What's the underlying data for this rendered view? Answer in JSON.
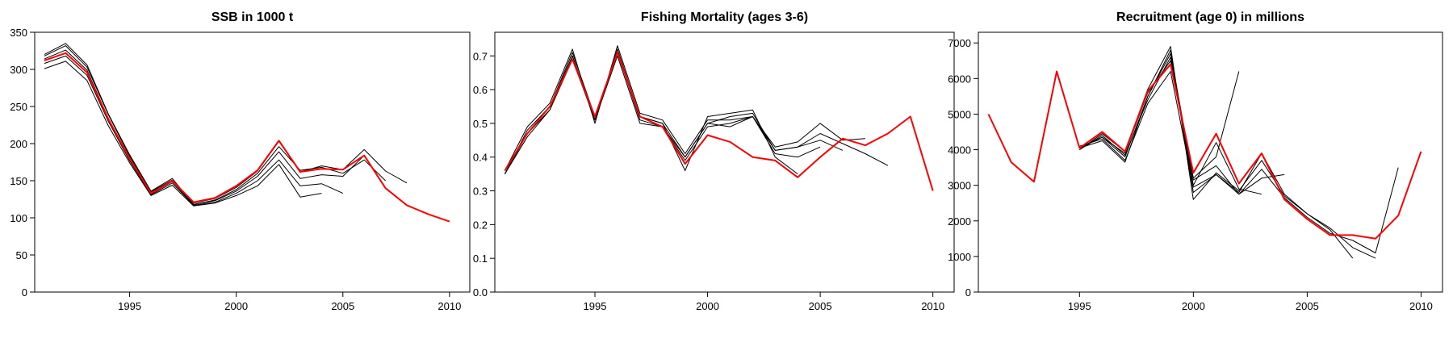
{
  "chart_data": [
    {
      "type": "line",
      "title": "SSB in 1000 t",
      "xlabel": "",
      "ylabel": "",
      "xlim": [
        1990.7,
        2010.8
      ],
      "ylim": [
        0,
        350
      ],
      "xticks": [
        1995,
        2000,
        2005,
        2010
      ],
      "yticks": [
        0,
        50,
        100,
        150,
        200,
        250,
        300,
        350
      ],
      "series": [
        {
          "color": "#ff0000",
          "x": [
            1991,
            1992,
            1993,
            1994,
            1995,
            1996,
            1997,
            1998,
            1999,
            2000,
            2001,
            2002,
            2003,
            2004,
            2005,
            2006,
            2007,
            2008,
            2009,
            2010
          ],
          "y": [
            312,
            322,
            296,
            233,
            180,
            133,
            150,
            121,
            127,
            143,
            164,
            204,
            162,
            166,
            165,
            184,
            140,
            117,
            105,
            95
          ]
        },
        {
          "color": "#000000",
          "x": [
            1991,
            1992,
            1993,
            1994,
            1995,
            1996,
            1997,
            1998,
            1999,
            2000,
            2001,
            2002,
            2003,
            2004,
            2005,
            2006,
            2007,
            2008
          ],
          "y": [
            318,
            332,
            303,
            239,
            183,
            135,
            151,
            120,
            126,
            141,
            163,
            203,
            162,
            170,
            165,
            192,
            163,
            147
          ]
        },
        {
          "color": "#000000",
          "x": [
            1991,
            1992,
            1993,
            1994,
            1995,
            1996,
            1997,
            1998,
            1999,
            2000,
            2001,
            2002,
            2003,
            2004,
            2005,
            2006,
            2007
          ],
          "y": [
            320,
            335,
            306,
            240,
            185,
            136,
            153,
            118,
            124,
            138,
            160,
            196,
            164,
            168,
            160,
            178,
            150
          ]
        },
        {
          "color": "#000000",
          "x": [
            1991,
            1992,
            1993,
            1994,
            1995,
            1996,
            1997,
            1998,
            1999,
            2000,
            2001,
            2002,
            2003,
            2004,
            2005,
            2006
          ],
          "y": [
            314,
            326,
            299,
            234,
            180,
            132,
            149,
            118,
            123,
            136,
            156,
            189,
            153,
            158,
            156,
            184
          ]
        },
        {
          "color": "#000000",
          "x": [
            1991,
            1992,
            1993,
            1994,
            1995,
            1996,
            1997,
            1998,
            1999,
            2000,
            2001,
            2002,
            2003,
            2004,
            2005
          ],
          "y": [
            308,
            318,
            292,
            230,
            177,
            131,
            147,
            117,
            121,
            133,
            150,
            178,
            143,
            146,
            133
          ]
        },
        {
          "color": "#000000",
          "x": [
            1991,
            1992,
            1993,
            1994,
            1995,
            1996,
            1997,
            1998,
            1999,
            2000,
            2001,
            2002,
            2003,
            2004
          ],
          "y": [
            301,
            311,
            285,
            224,
            174,
            130,
            144,
            116,
            120,
            130,
            143,
            172,
            128,
            133
          ]
        }
      ]
    },
    {
      "type": "line",
      "title": "Fishing Mortality (ages 3-6)",
      "xlabel": "",
      "ylabel": "",
      "xlim": [
        1990.7,
        2010.8
      ],
      "ylim": [
        0,
        0.77
      ],
      "xticks": [
        1995,
        2000,
        2005,
        2010
      ],
      "yticks": [
        0.0,
        0.1,
        0.2,
        0.3,
        0.4,
        0.5,
        0.6,
        0.7
      ],
      "ytick_labels": [
        "0.0",
        "0.1",
        "0.2",
        "0.3",
        "0.4",
        "0.5",
        "0.6",
        "0.7"
      ],
      "series": [
        {
          "color": "#ff0000",
          "x": [
            1991,
            1992,
            1993,
            1994,
            1995,
            1996,
            1997,
            1998,
            1999,
            2000,
            2001,
            2002,
            2003,
            2004,
            2005,
            2006,
            2007,
            2008,
            2009,
            2010
          ],
          "y": [
            0.36,
            0.47,
            0.55,
            0.69,
            0.52,
            0.71,
            0.52,
            0.49,
            0.38,
            0.465,
            0.445,
            0.4,
            0.39,
            0.34,
            0.4,
            0.455,
            0.435,
            0.47,
            0.52,
            0.3
          ]
        },
        {
          "color": "#000000",
          "x": [
            1991,
            1992,
            1993,
            1994,
            1995,
            1996,
            1997,
            1998,
            1999,
            2000,
            2001,
            2002,
            2003,
            2004,
            2005,
            2006,
            2007,
            2008
          ],
          "y": [
            0.35,
            0.48,
            0.55,
            0.7,
            0.51,
            0.72,
            0.52,
            0.5,
            0.4,
            0.5,
            0.52,
            0.53,
            0.42,
            0.43,
            0.47,
            0.44,
            0.41,
            0.375
          ]
        },
        {
          "color": "#000000",
          "x": [
            1991,
            1992,
            1993,
            1994,
            1995,
            1996,
            1997,
            1998,
            1999,
            2000,
            2001,
            2002,
            2003,
            2004,
            2005,
            2006,
            2007
          ],
          "y": [
            0.36,
            0.49,
            0.56,
            0.72,
            0.5,
            0.73,
            0.53,
            0.51,
            0.41,
            0.51,
            0.51,
            0.52,
            0.43,
            0.445,
            0.5,
            0.45,
            0.455
          ]
        },
        {
          "color": "#000000",
          "x": [
            1991,
            1992,
            1993,
            1994,
            1995,
            1996,
            1997,
            1998,
            1999,
            2000,
            2001,
            2002,
            2003,
            2004,
            2005,
            2006
          ],
          "y": [
            0.35,
            0.46,
            0.54,
            0.69,
            0.51,
            0.7,
            0.5,
            0.49,
            0.39,
            0.49,
            0.5,
            0.52,
            0.42,
            0.43,
            0.45,
            0.42
          ]
        },
        {
          "color": "#000000",
          "x": [
            1991,
            1992,
            1993,
            1994,
            1995,
            1996,
            1997,
            1998,
            1999,
            2000,
            2001,
            2002,
            2003,
            2004,
            2005
          ],
          "y": [
            0.35,
            0.47,
            0.55,
            0.71,
            0.52,
            0.71,
            0.51,
            0.49,
            0.4,
            0.5,
            0.49,
            0.52,
            0.41,
            0.4,
            0.43
          ]
        },
        {
          "color": "#000000",
          "x": [
            1991,
            1992,
            1993,
            1994,
            1995,
            1996,
            1997,
            1998,
            1999,
            2000,
            2001,
            2002,
            2003,
            2004
          ],
          "y": [
            0.35,
            0.47,
            0.54,
            0.7,
            0.51,
            0.71,
            0.52,
            0.5,
            0.36,
            0.52,
            0.53,
            0.54,
            0.4,
            0.35
          ]
        }
      ]
    },
    {
      "type": "line",
      "title": "Recruitment (age 0) in millions",
      "xlabel": "",
      "ylabel": "",
      "xlim": [
        1990.7,
        2010.8
      ],
      "ylim": [
        0,
        7300
      ],
      "xticks": [
        1995,
        2000,
        2005,
        2010
      ],
      "yticks": [
        0,
        1000,
        2000,
        3000,
        4000,
        5000,
        6000,
        7000
      ],
      "series": [
        {
          "color": "#ff0000",
          "x": [
            1991,
            1992,
            1993,
            1994,
            1995,
            1996,
            1997,
            1998,
            1999,
            2000,
            2001,
            2002,
            2003,
            2004,
            2005,
            2006,
            2007,
            2008,
            2009,
            2010
          ],
          "y": [
            5000,
            3650,
            3100,
            6200,
            4050,
            4500,
            3950,
            5650,
            6400,
            3350,
            4450,
            3050,
            3900,
            2600,
            2050,
            1600,
            1600,
            1500,
            2150,
            3950
          ]
        },
        {
          "color": "#000000",
          "x": [
            1995,
            1996,
            1997,
            1998,
            1999,
            2000,
            2001,
            2002,
            2003,
            2004,
            2005,
            2006,
            2007,
            2008,
            2009
          ],
          "y": [
            4050,
            4350,
            3900,
            5600,
            6500,
            3150,
            3550,
            2750,
            3450,
            2650,
            2100,
            1650,
            1450,
            1100,
            3500
          ]
        },
        {
          "color": "#000000",
          "x": [
            1995,
            1996,
            1997,
            1998,
            1999,
            2000,
            2001,
            2002,
            2003,
            2004,
            2005,
            2006,
            2007,
            2008
          ],
          "y": [
            4000,
            4450,
            3950,
            5700,
            6900,
            2600,
            3350,
            2850,
            3700,
            2700,
            2200,
            1800,
            1250,
            950
          ]
        },
        {
          "color": "#000000",
          "x": [
            1995,
            1996,
            1997,
            1998,
            1999,
            2000,
            2001,
            2002,
            2003,
            2004,
            2005,
            2006,
            2007
          ],
          "y": [
            4100,
            4300,
            3700,
            5300,
            6200,
            2950,
            3300,
            2800,
            3900,
            2750,
            2200,
            1750,
            950
          ]
        },
        {
          "color": "#000000",
          "x": [
            1995,
            1996,
            1997,
            1998,
            1999,
            2000,
            2001,
            2002,
            2003,
            2004
          ],
          "y": [
            4050,
            4250,
            3650,
            5500,
            6800,
            2800,
            3300,
            2750,
            3200,
            3300
          ]
        },
        {
          "color": "#000000",
          "x": [
            1995,
            1996,
            1997,
            1998,
            1999,
            2000,
            2001,
            2002,
            2003
          ],
          "y": [
            4000,
            4400,
            3850,
            5400,
            6600,
            3000,
            4200,
            2900,
            2750
          ]
        },
        {
          "color": "#000000",
          "x": [
            1995,
            1996,
            1997,
            1998,
            1999,
            2000,
            2001,
            2002
          ],
          "y": [
            4050,
            4350,
            3800,
            5500,
            6700,
            3200,
            3800,
            6200
          ]
        }
      ]
    }
  ]
}
